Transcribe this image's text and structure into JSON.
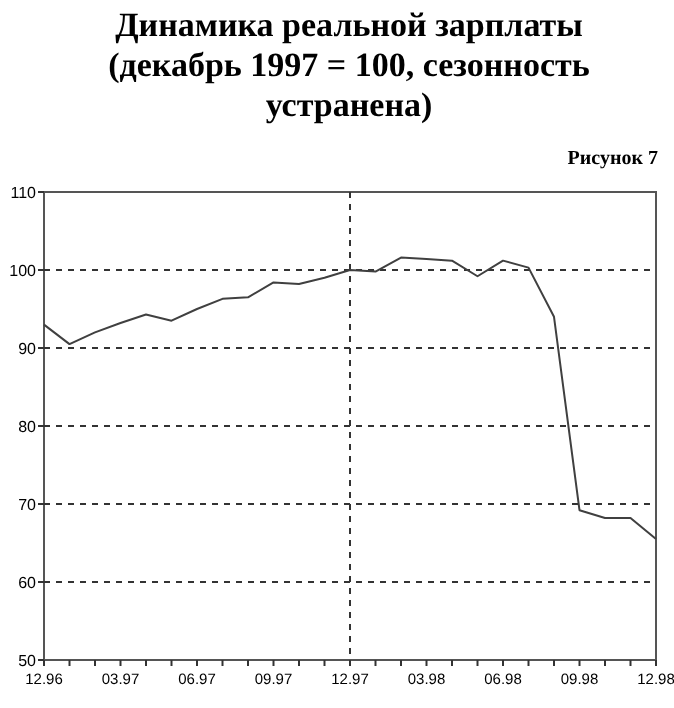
{
  "chart_data": {
    "type": "line",
    "title": "Динамика реальной зарплаты (декабрь 1997 = 100, сезонность устранена)",
    "annotations": [
      "Рисунок 7"
    ],
    "categories": [
      "12.96",
      null,
      null,
      "03.97",
      null,
      null,
      "06.97",
      null,
      null,
      "09.97",
      null,
      null,
      "12.97",
      null,
      null,
      "03.98",
      null,
      null,
      "06.98",
      null,
      null,
      "09.98",
      null,
      null,
      "12.98"
    ],
    "series": [
      {
        "color": "#404040",
        "values": [
          93,
          90.5,
          92,
          93.2,
          94.3,
          93.5,
          95,
          96.3,
          96.5,
          98.4,
          98.2,
          99,
          100,
          99.8,
          101.6,
          101.4,
          101.2,
          99.2,
          101.2,
          100.3,
          94,
          69.2,
          68.2,
          68.2,
          65.5
        ]
      }
    ],
    "ylim": [
      50,
      110
    ],
    "yticks": [
      50,
      60,
      70,
      80,
      90,
      100,
      110
    ],
    "grid": "y",
    "ref_lines": [
      {
        "axis": "x",
        "value": "12.97",
        "line_style": "dashed"
      }
    ],
    "marker": "none",
    "line_style": "solid"
  }
}
